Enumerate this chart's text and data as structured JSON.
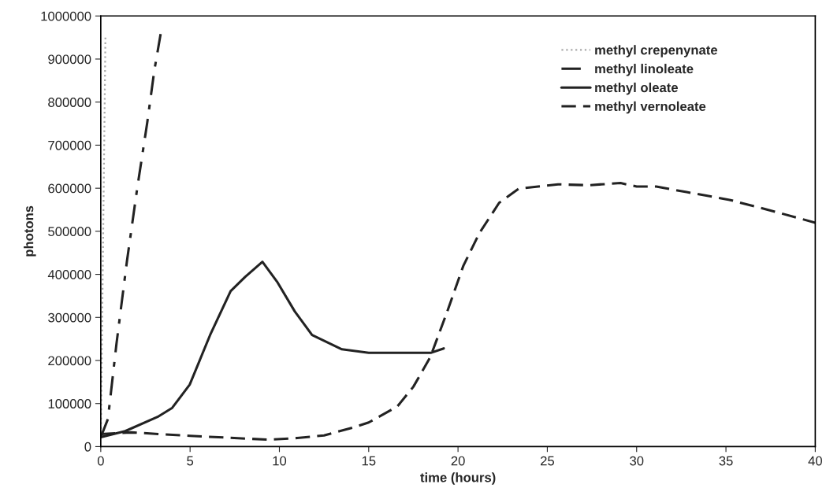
{
  "chart_data": {
    "type": "line",
    "xlabel": "time (hours)",
    "ylabel": "photons",
    "xlim": [
      0,
      40
    ],
    "xticks": [
      0,
      5,
      10,
      15,
      20,
      25,
      30,
      35,
      40
    ],
    "ylim": [
      0,
      1000000
    ],
    "yticks": [
      0,
      100000,
      200000,
      300000,
      400000,
      500000,
      600000,
      700000,
      800000,
      900000,
      1000000
    ],
    "grid": false,
    "legend": "top right",
    "marker": "none",
    "series": [
      {
        "name": "methyl crepenynate",
        "color": "#aaaaaa",
        "line_style": "dotted",
        "x": [
          0,
          0.02,
          0.26
        ],
        "values": [
          20000,
          70000,
          950000
        ]
      },
      {
        "name": "methyl linoleate",
        "color": "#222222",
        "line_style": "dashdot",
        "x": [
          0,
          0.4,
          0.88,
          1.46,
          2.03,
          2.6,
          3.0,
          3.35
        ],
        "values": [
          22000,
          64000,
          239000,
          429000,
          597000,
          752000,
          874000,
          958000
        ]
      },
      {
        "name": "methyl oleate",
        "color": "#222222",
        "line_style": "solid",
        "x": [
          0,
          1.37,
          3.18,
          4.0,
          4.98,
          6.12,
          7.27,
          8.08,
          9.05,
          9.9,
          10.86,
          11.83,
          13.5,
          15,
          18.5,
          19.2
        ],
        "values": [
          22000,
          36000,
          69000,
          90000,
          144000,
          259000,
          361000,
          394000,
          429000,
          381000,
          314000,
          259000,
          226000,
          218000,
          218000,
          228000
        ]
      },
      {
        "name": "methyl vernoleate",
        "color": "#222222",
        "line_style": "dashed",
        "x": [
          0,
          1.7,
          5,
          9.4,
          11,
          12.5,
          14.1,
          15,
          16.6,
          17.5,
          18.45,
          19.4,
          20.3,
          21.2,
          22.3,
          23.4,
          25.6,
          27.3,
          29.1,
          30.0,
          31.1,
          32.8,
          35.2,
          37.7,
          40
        ],
        "values": [
          29000,
          33000,
          25000,
          16000,
          20000,
          26000,
          44000,
          56000,
          93000,
          139000,
          208000,
          314000,
          420000,
          496000,
          566000,
          599000,
          609000,
          607000,
          612000,
          604000,
          604000,
          591000,
          573000,
          546000,
          520000
        ]
      }
    ]
  }
}
